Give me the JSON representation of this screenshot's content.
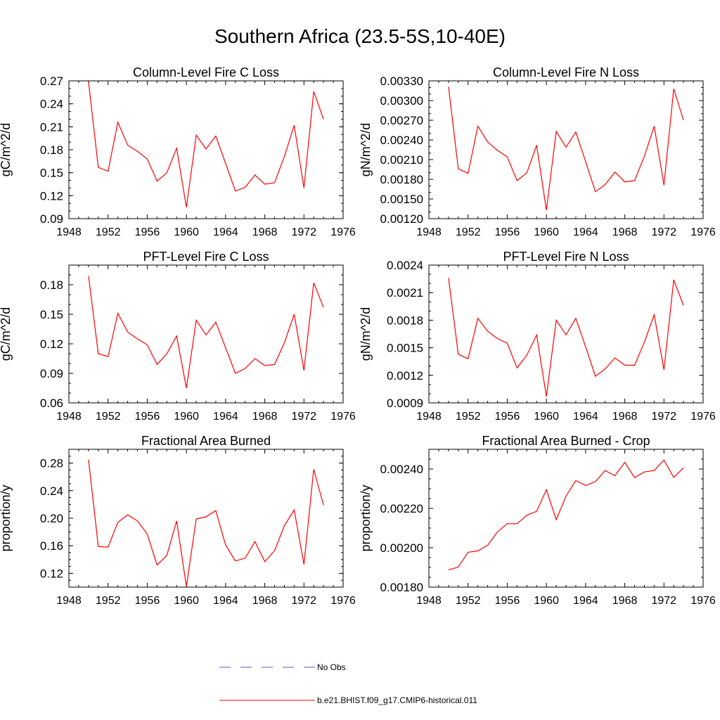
{
  "figure": {
    "title": "Southern Africa (23.5-5S,10-40E)",
    "legend": [
      {
        "label": "No Obs",
        "color": "#4a5cc8",
        "style": "dashed"
      },
      {
        "label": "b.e21.BHIST.f09_g17.CMIP6-historical.011",
        "color": "#ff0000",
        "style": "solid"
      }
    ]
  },
  "chart_data": [
    {
      "type": "line",
      "title": "Column-Level Fire C Loss",
      "ylabel": "gC/m^2/d",
      "xlabel": "",
      "xlim": [
        1948,
        1976
      ],
      "xticks": [
        1948,
        1952,
        1956,
        1960,
        1964,
        1968,
        1972,
        1976
      ],
      "xtick_labels": [
        "1948",
        "1952",
        "1956",
        "1960",
        "1964",
        "1968",
        "1972",
        "1976"
      ],
      "ylim": [
        0.09,
        0.27
      ],
      "yticks": [
        0.09,
        0.12,
        0.15,
        0.18,
        0.21,
        0.24,
        0.27
      ],
      "ytick_labels": [
        "0.09",
        "0.12",
        "0.15",
        "0.18",
        "0.21",
        "0.24",
        "0.27"
      ],
      "minor_y_step": 0.01,
      "series": [
        {
          "color": "#ff0000",
          "x": [
            1950,
            1951,
            1952,
            1953,
            1954,
            1955,
            1956,
            1957,
            1958,
            1959,
            1960,
            1961,
            1962,
            1963,
            1964,
            1965,
            1966,
            1967,
            1968,
            1969,
            1970,
            1971,
            1972,
            1973,
            1974
          ],
          "y": [
            0.269,
            0.157,
            0.152,
            0.216,
            0.186,
            0.178,
            0.168,
            0.139,
            0.15,
            0.182,
            0.105,
            0.199,
            0.181,
            0.198,
            0.162,
            0.126,
            0.131,
            0.147,
            0.135,
            0.137,
            0.171,
            0.212,
            0.13,
            0.256,
            0.22
          ]
        }
      ]
    },
    {
      "type": "line",
      "title": "Column-Level Fire N Loss",
      "ylabel": "gN/m^2/d",
      "xlabel": "",
      "xlim": [
        1948,
        1976
      ],
      "xticks": [
        1948,
        1952,
        1956,
        1960,
        1964,
        1968,
        1972,
        1976
      ],
      "xtick_labels": [
        "1948",
        "1952",
        "1956",
        "1960",
        "1964",
        "1968",
        "1972",
        "1976"
      ],
      "ylim": [
        0.0012,
        0.0033
      ],
      "yticks": [
        0.0012,
        0.0015,
        0.0018,
        0.0021,
        0.0024,
        0.0027,
        0.003,
        0.0033
      ],
      "ytick_labels": [
        "0.00120",
        "0.00150",
        "0.00180",
        "0.00210",
        "0.00240",
        "0.00270",
        "0.00300",
        "0.00330"
      ],
      "minor_y_step": 0.0001,
      "series": [
        {
          "color": "#ff0000",
          "x": [
            1950,
            1951,
            1952,
            1953,
            1954,
            1955,
            1956,
            1957,
            1958,
            1959,
            1960,
            1961,
            1962,
            1963,
            1964,
            1965,
            1966,
            1967,
            1968,
            1969,
            1970,
            1971,
            1972,
            1973,
            1974
          ],
          "y": [
            0.00321,
            0.00196,
            0.00189,
            0.00261,
            0.00237,
            0.00224,
            0.00214,
            0.00178,
            0.0019,
            0.00232,
            0.00133,
            0.00253,
            0.00229,
            0.00252,
            0.00207,
            0.00161,
            0.00172,
            0.00191,
            0.00176,
            0.00178,
            0.00215,
            0.00261,
            0.00171,
            0.00318,
            0.0027
          ]
        }
      ]
    },
    {
      "type": "line",
      "title": "PFT-Level Fire C Loss",
      "ylabel": "gC/m^2/d",
      "xlabel": "",
      "xlim": [
        1948,
        1976
      ],
      "xticks": [
        1948,
        1952,
        1956,
        1960,
        1964,
        1968,
        1972,
        1976
      ],
      "xtick_labels": [
        "1948",
        "1952",
        "1956",
        "1960",
        "1964",
        "1968",
        "1972",
        "1976"
      ],
      "ylim": [
        0.06,
        0.2
      ],
      "yticks": [
        0.06,
        0.09,
        0.12,
        0.15,
        0.18
      ],
      "ytick_labels": [
        "0.06",
        "0.09",
        "0.12",
        "0.15",
        "0.18"
      ],
      "minor_y_step": 0.01,
      "series": [
        {
          "color": "#ff0000",
          "x": [
            1950,
            1951,
            1952,
            1953,
            1954,
            1955,
            1956,
            1957,
            1958,
            1959,
            1960,
            1961,
            1962,
            1963,
            1964,
            1965,
            1966,
            1967,
            1968,
            1969,
            1970,
            1971,
            1972,
            1973,
            1974
          ],
          "y": [
            0.189,
            0.11,
            0.107,
            0.151,
            0.132,
            0.125,
            0.119,
            0.099,
            0.11,
            0.128,
            0.075,
            0.144,
            0.129,
            0.142,
            0.116,
            0.09,
            0.095,
            0.105,
            0.098,
            0.099,
            0.121,
            0.15,
            0.093,
            0.182,
            0.157
          ]
        }
      ]
    },
    {
      "type": "line",
      "title": "PFT-Level Fire N Loss",
      "ylabel": "gN/m^2/d",
      "xlabel": "",
      "xlim": [
        1948,
        1976
      ],
      "xticks": [
        1948,
        1952,
        1956,
        1960,
        1964,
        1968,
        1972,
        1976
      ],
      "xtick_labels": [
        "1948",
        "1952",
        "1956",
        "1960",
        "1964",
        "1968",
        "1972",
        "1976"
      ],
      "ylim": [
        0.0009,
        0.0024
      ],
      "yticks": [
        0.0009,
        0.0012,
        0.0015,
        0.0018,
        0.0021,
        0.0024
      ],
      "ytick_labels": [
        "0.0009",
        "0.0012",
        "0.0015",
        "0.0018",
        "0.0021",
        "0.0024"
      ],
      "minor_y_step": 0.0001,
      "series": [
        {
          "color": "#ff0000",
          "x": [
            1950,
            1951,
            1952,
            1953,
            1954,
            1955,
            1956,
            1957,
            1958,
            1959,
            1960,
            1961,
            1962,
            1963,
            1964,
            1965,
            1966,
            1967,
            1968,
            1969,
            1970,
            1971,
            1972,
            1973,
            1974
          ],
          "y": [
            0.00226,
            0.00143,
            0.00138,
            0.00182,
            0.00168,
            0.0016,
            0.00155,
            0.00128,
            0.00142,
            0.00164,
            0.00097,
            0.0018,
            0.00164,
            0.00182,
            0.00151,
            0.00119,
            0.00127,
            0.00139,
            0.00131,
            0.00131,
            0.00156,
            0.00186,
            0.00126,
            0.00224,
            0.00196
          ]
        }
      ]
    },
    {
      "type": "line",
      "title": "Fractional Area Burned",
      "ylabel": "proportion/y",
      "xlabel": "",
      "xlim": [
        1948,
        1976
      ],
      "xticks": [
        1948,
        1952,
        1956,
        1960,
        1964,
        1968,
        1972,
        1976
      ],
      "xtick_labels": [
        "1948",
        "1952",
        "1956",
        "1960",
        "1964",
        "1968",
        "1972",
        "1976"
      ],
      "ylim": [
        0.1,
        0.3
      ],
      "yticks": [
        0.12,
        0.16,
        0.2,
        0.24,
        0.28
      ],
      "ytick_labels": [
        "0.12",
        "0.16",
        "0.20",
        "0.24",
        "0.28"
      ],
      "minor_y_step": 0.01,
      "series": [
        {
          "color": "#ff0000",
          "x": [
            1950,
            1951,
            1952,
            1953,
            1954,
            1955,
            1956,
            1957,
            1958,
            1959,
            1960,
            1961,
            1962,
            1963,
            1964,
            1965,
            1966,
            1967,
            1968,
            1969,
            1970,
            1971,
            1972,
            1973,
            1974
          ],
          "y": [
            0.285,
            0.159,
            0.158,
            0.194,
            0.205,
            0.196,
            0.177,
            0.132,
            0.146,
            0.196,
            0.101,
            0.199,
            0.202,
            0.211,
            0.161,
            0.138,
            0.142,
            0.166,
            0.137,
            0.153,
            0.189,
            0.212,
            0.133,
            0.271,
            0.219
          ]
        }
      ]
    },
    {
      "type": "line",
      "title": "Fractional Area Burned - Crop",
      "ylabel": "proportion/y",
      "xlabel": "",
      "xlim": [
        1948,
        1976
      ],
      "xticks": [
        1948,
        1952,
        1956,
        1960,
        1964,
        1968,
        1972,
        1976
      ],
      "xtick_labels": [
        "1948",
        "1952",
        "1956",
        "1960",
        "1964",
        "1968",
        "1972",
        "1976"
      ],
      "ylim": [
        0.0018,
        0.0025
      ],
      "yticks": [
        0.0018,
        0.002,
        0.0022,
        0.0024
      ],
      "ytick_labels": [
        "0.00180",
        "0.00200",
        "0.00220",
        "0.00240"
      ],
      "minor_y_step": 5e-05,
      "series": [
        {
          "color": "#ff0000",
          "x": [
            1950,
            1951,
            1952,
            1953,
            1954,
            1955,
            1956,
            1957,
            1958,
            1959,
            1960,
            1961,
            1962,
            1963,
            1964,
            1965,
            1966,
            1967,
            1968,
            1969,
            1970,
            1971,
            1972,
            1973,
            1974
          ],
          "y": [
            0.001887,
            0.001902,
            0.001977,
            0.001984,
            0.002013,
            0.00208,
            0.002122,
            0.002122,
            0.002165,
            0.002185,
            0.002295,
            0.002143,
            0.002262,
            0.002341,
            0.002316,
            0.002336,
            0.002392,
            0.002366,
            0.002434,
            0.002356,
            0.002385,
            0.002392,
            0.002445,
            0.002357,
            0.002406
          ]
        }
      ]
    }
  ]
}
